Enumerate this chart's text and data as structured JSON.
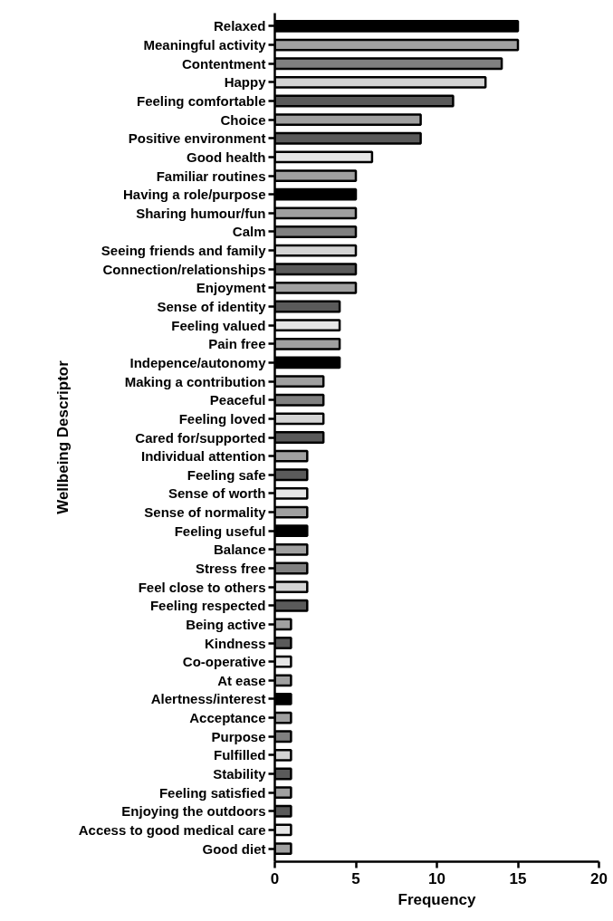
{
  "chart_data": {
    "type": "bar",
    "orientation": "horizontal",
    "xlabel": "Frequency",
    "ylabel": "Wellbeing Descriptor",
    "categories": [
      "Relaxed",
      "Meaningful activity",
      "Contentment",
      "Happy",
      "Feeling comfortable",
      "Choice",
      "Positive environment",
      "Good health",
      "Familiar routines",
      "Having a role/purpose",
      "Sharing humour/fun",
      "Calm",
      "Seeing friends and family",
      "Connection/relationships",
      "Enjoyment",
      "Sense of identity",
      "Feeling valued",
      "Pain free",
      "Indepence/autonomy",
      "Making a contribution",
      "Peaceful",
      "Feeling loved",
      "Cared for/supported",
      "Individual attention",
      "Feeling safe",
      "Sense of worth",
      "Sense of normality",
      "Feeling useful",
      "Balance",
      "Stress free",
      "Feel close to others",
      "Feeling respected",
      "Being active",
      "Kindness",
      "Co-operative",
      "At ease",
      "Alertness/interest",
      "Acceptance",
      "Purpose",
      "Fulfilled",
      "Stability",
      "Feeling satisfied",
      "Enjoying the outdoors",
      "Access to good medical care",
      "Good diet"
    ],
    "values": [
      15,
      15,
      14,
      13,
      11,
      9,
      9,
      6,
      5,
      5,
      5,
      5,
      5,
      5,
      5,
      4,
      4,
      4,
      4,
      3,
      3,
      3,
      3,
      2,
      2,
      2,
      2,
      2,
      2,
      2,
      2,
      2,
      1,
      1,
      1,
      1,
      1,
      1,
      1,
      1,
      1,
      1,
      1,
      1,
      1
    ],
    "colors": [
      "#000000",
      "#a0a0a0",
      "#808080",
      "#d4d4d4",
      "#5a5a5a",
      "#a0a0a0",
      "#5a5a5a",
      "#e6e6e6",
      "#a0a0a0",
      "#000000",
      "#a0a0a0",
      "#808080",
      "#d4d4d4",
      "#5a5a5a",
      "#a0a0a0",
      "#5a5a5a",
      "#e6e6e6",
      "#a0a0a0",
      "#000000",
      "#a0a0a0",
      "#808080",
      "#d4d4d4",
      "#5a5a5a",
      "#a0a0a0",
      "#5a5a5a",
      "#e6e6e6",
      "#a0a0a0",
      "#000000",
      "#a0a0a0",
      "#808080",
      "#d4d4d4",
      "#5a5a5a",
      "#a0a0a0",
      "#5a5a5a",
      "#e6e6e6",
      "#a0a0a0",
      "#000000",
      "#a0a0a0",
      "#808080",
      "#d4d4d4",
      "#5a5a5a",
      "#a0a0a0",
      "#5a5a5a",
      "#e6e6e6",
      "#a0a0a0"
    ],
    "xlim": [
      0,
      20
    ],
    "xticks": [
      0,
      5,
      10,
      15,
      20
    ],
    "grid": false
  }
}
